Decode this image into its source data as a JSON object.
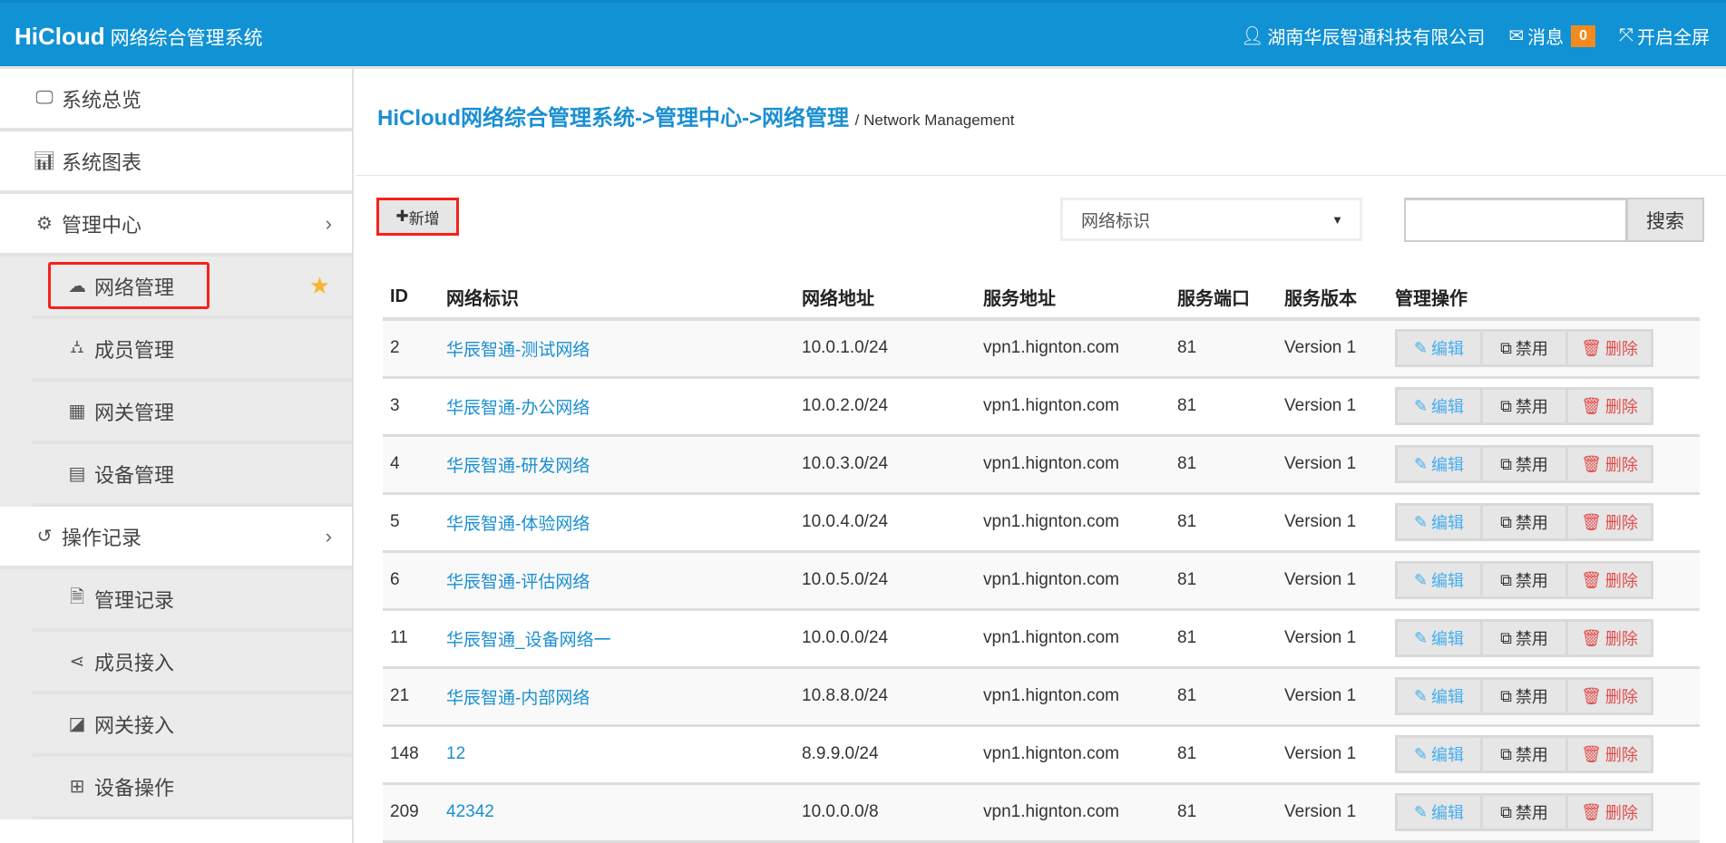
{
  "header": {
    "brand": "HiCloud",
    "system_name": "网络综合管理系统",
    "company": "湖南华辰智通科技有限公司",
    "messages_label": "消息",
    "messages_count": "0",
    "fullscreen_label": "开启全屏"
  },
  "sidebar": {
    "items": [
      {
        "label": "系统总览",
        "icon": "desktop-icon",
        "sub": false
      },
      {
        "label": "系统图表",
        "icon": "bar-chart-icon",
        "sub": false
      },
      {
        "label": "管理中心",
        "icon": "gears-icon",
        "sub": false,
        "chevron": true
      },
      {
        "label": "网络管理",
        "icon": "cloud-icon",
        "sub": true,
        "active": true,
        "star": true
      },
      {
        "label": "成员管理",
        "icon": "sitemap-icon",
        "sub": true
      },
      {
        "label": "网关管理",
        "icon": "grid-icon",
        "sub": true
      },
      {
        "label": "设备管理",
        "icon": "calendar-icon",
        "sub": true
      },
      {
        "label": "操作记录",
        "icon": "history-icon",
        "sub": false,
        "chevron": true
      },
      {
        "label": "管理记录",
        "icon": "file-text-icon",
        "sub": true
      },
      {
        "label": "成员接入",
        "icon": "share-icon",
        "sub": true
      },
      {
        "label": "网关接入",
        "icon": "share-square-icon",
        "sub": true
      },
      {
        "label": "设备操作",
        "icon": "plus-square-icon",
        "sub": true
      }
    ]
  },
  "breadcrumb": {
    "path": "HiCloud网络综合管理系统->管理中心->网络管理",
    "separator": "/",
    "english": "Network Management"
  },
  "toolbar": {
    "add_label": "新增",
    "select_value": "网络标识",
    "search_value": "",
    "search_label": "搜索"
  },
  "table": {
    "columns": [
      "ID",
      "网络标识",
      "网络地址",
      "服务地址",
      "服务端口",
      "服务版本",
      "管理操作"
    ],
    "actions": {
      "edit": "编辑",
      "disable": "禁用",
      "delete": "删除"
    },
    "rows": [
      {
        "id": "2",
        "name": "华辰智通-测试网络",
        "addr": "10.0.1.0/24",
        "service": "vpn1.hignton.com",
        "port": "81",
        "version": "Version 1"
      },
      {
        "id": "3",
        "name": "华辰智通-办公网络",
        "addr": "10.0.2.0/24",
        "service": "vpn1.hignton.com",
        "port": "81",
        "version": "Version 1"
      },
      {
        "id": "4",
        "name": "华辰智通-研发网络",
        "addr": "10.0.3.0/24",
        "service": "vpn1.hignton.com",
        "port": "81",
        "version": "Version 1"
      },
      {
        "id": "5",
        "name": "华辰智通-体验网络",
        "addr": "10.0.4.0/24",
        "service": "vpn1.hignton.com",
        "port": "81",
        "version": "Version 1"
      },
      {
        "id": "6",
        "name": "华辰智通-评估网络",
        "addr": "10.0.5.0/24",
        "service": "vpn1.hignton.com",
        "port": "81",
        "version": "Version 1"
      },
      {
        "id": "11",
        "name": "华辰智通_设备网络一",
        "addr": "10.0.0.0/24",
        "service": "vpn1.hignton.com",
        "port": "81",
        "version": "Version 1"
      },
      {
        "id": "21",
        "name": "华辰智通-内部网络",
        "addr": "10.8.8.0/24",
        "service": "vpn1.hignton.com",
        "port": "81",
        "version": "Version 1"
      },
      {
        "id": "148",
        "name": "12",
        "addr": "8.9.9.0/24",
        "service": "vpn1.hignton.com",
        "port": "81",
        "version": "Version 1"
      },
      {
        "id": "209",
        "name": "42342",
        "addr": "10.0.0.0/8",
        "service": "vpn1.hignton.com",
        "port": "81",
        "version": "Version 1"
      }
    ]
  },
  "colors": {
    "header": "#1192d4",
    "accent": "#1a8fd2",
    "badge": "#f28a1e",
    "highlight": "#f5221b",
    "star": "#f9b532"
  }
}
